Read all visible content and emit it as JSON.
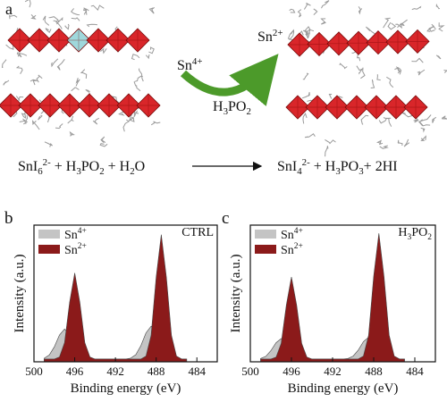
{
  "panel_a": {
    "label": "a",
    "reactant_ion": "Sn4+",
    "product_ion": "Sn2+",
    "reagent": "H3PO2",
    "equation_left": "SnI62- + H3PO2 + H2O",
    "equation_right": "SnI42- + H3PO3+ 2HI"
  },
  "chart_data": [
    {
      "type": "area",
      "panel_label": "b",
      "annotation": "CTRL",
      "xlabel": "Binding energy (eV)",
      "ylabel": "Intensity (a.u.)",
      "xlim": [
        500,
        482
      ],
      "xticks": [
        500,
        496,
        492,
        488,
        484
      ],
      "ylim": [
        0,
        100
      ],
      "legend": "upper left",
      "x": [
        499,
        498.5,
        498,
        497.5,
        497,
        496.5,
        496,
        495.5,
        495,
        494.5,
        494,
        493.5,
        493,
        492.5,
        492,
        491.5,
        491,
        490.5,
        490,
        489.5,
        489,
        488.5,
        488,
        487.5,
        487,
        486.5,
        486,
        485.5,
        485
      ],
      "series": [
        {
          "name": "Sn4+",
          "color": "#c4c4c4",
          "values": [
            2.6,
            5,
            11,
            19.6,
            24,
            19.6,
            11,
            5,
            2.6,
            2.1,
            2,
            2,
            2,
            2,
            2,
            2,
            2,
            2.7,
            5.2,
            11.8,
            21.2,
            26,
            21.2,
            11.8,
            5.2,
            2.7,
            2.1,
            2,
            2
          ]
        },
        {
          "name": "Sn2+",
          "color": "#8b1a1a",
          "values": [
            2,
            2,
            2,
            3.5,
            14,
            43.6,
            65,
            43.6,
            14,
            3.5,
            2,
            2,
            2,
            2,
            2,
            2,
            2,
            2,
            2,
            2,
            4.2,
            19.3,
            62,
            93,
            62,
            19.3,
            4.2,
            2.1,
            2
          ]
        }
      ]
    },
    {
      "type": "area",
      "panel_label": "c",
      "annotation": "H3PO2",
      "xlabel": "Binding energy (eV)",
      "ylabel": "Intensity (a.u.)",
      "xlim": [
        500,
        482
      ],
      "xticks": [
        500,
        496,
        492,
        488,
        484
      ],
      "ylim": [
        0,
        100
      ],
      "legend": "upper left",
      "x": [
        499,
        498.5,
        498,
        497.5,
        497,
        496.5,
        496,
        495.5,
        495,
        494.5,
        494,
        493.5,
        493,
        492.5,
        492,
        491.5,
        491,
        490.5,
        490,
        489.5,
        489,
        488.5,
        488,
        487.5,
        487,
        486.5,
        486,
        485.5,
        485
      ],
      "series": [
        {
          "name": "Sn4+",
          "color": "#c4c4c4",
          "values": [
            2.4,
            4,
            8.2,
            14,
            17,
            14,
            8.2,
            4,
            2.4,
            2.1,
            2,
            2,
            2,
            2,
            2,
            2,
            2,
            2.4,
            4.2,
            8.6,
            14.8,
            18,
            14.8,
            8.6,
            4.2,
            2.4,
            2.1,
            2,
            2
          ]
        },
        {
          "name": "Sn2+",
          "color": "#8b1a1a",
          "values": [
            2,
            2,
            2,
            3.4,
            13.4,
            41.6,
            62,
            41.6,
            13.4,
            3.4,
            2,
            2,
            2,
            2,
            2,
            2,
            2,
            2,
            2,
            2.1,
            4.2,
            19.5,
            62.7,
            94,
            62.7,
            19.5,
            4.2,
            2.1,
            2
          ]
        }
      ]
    }
  ]
}
